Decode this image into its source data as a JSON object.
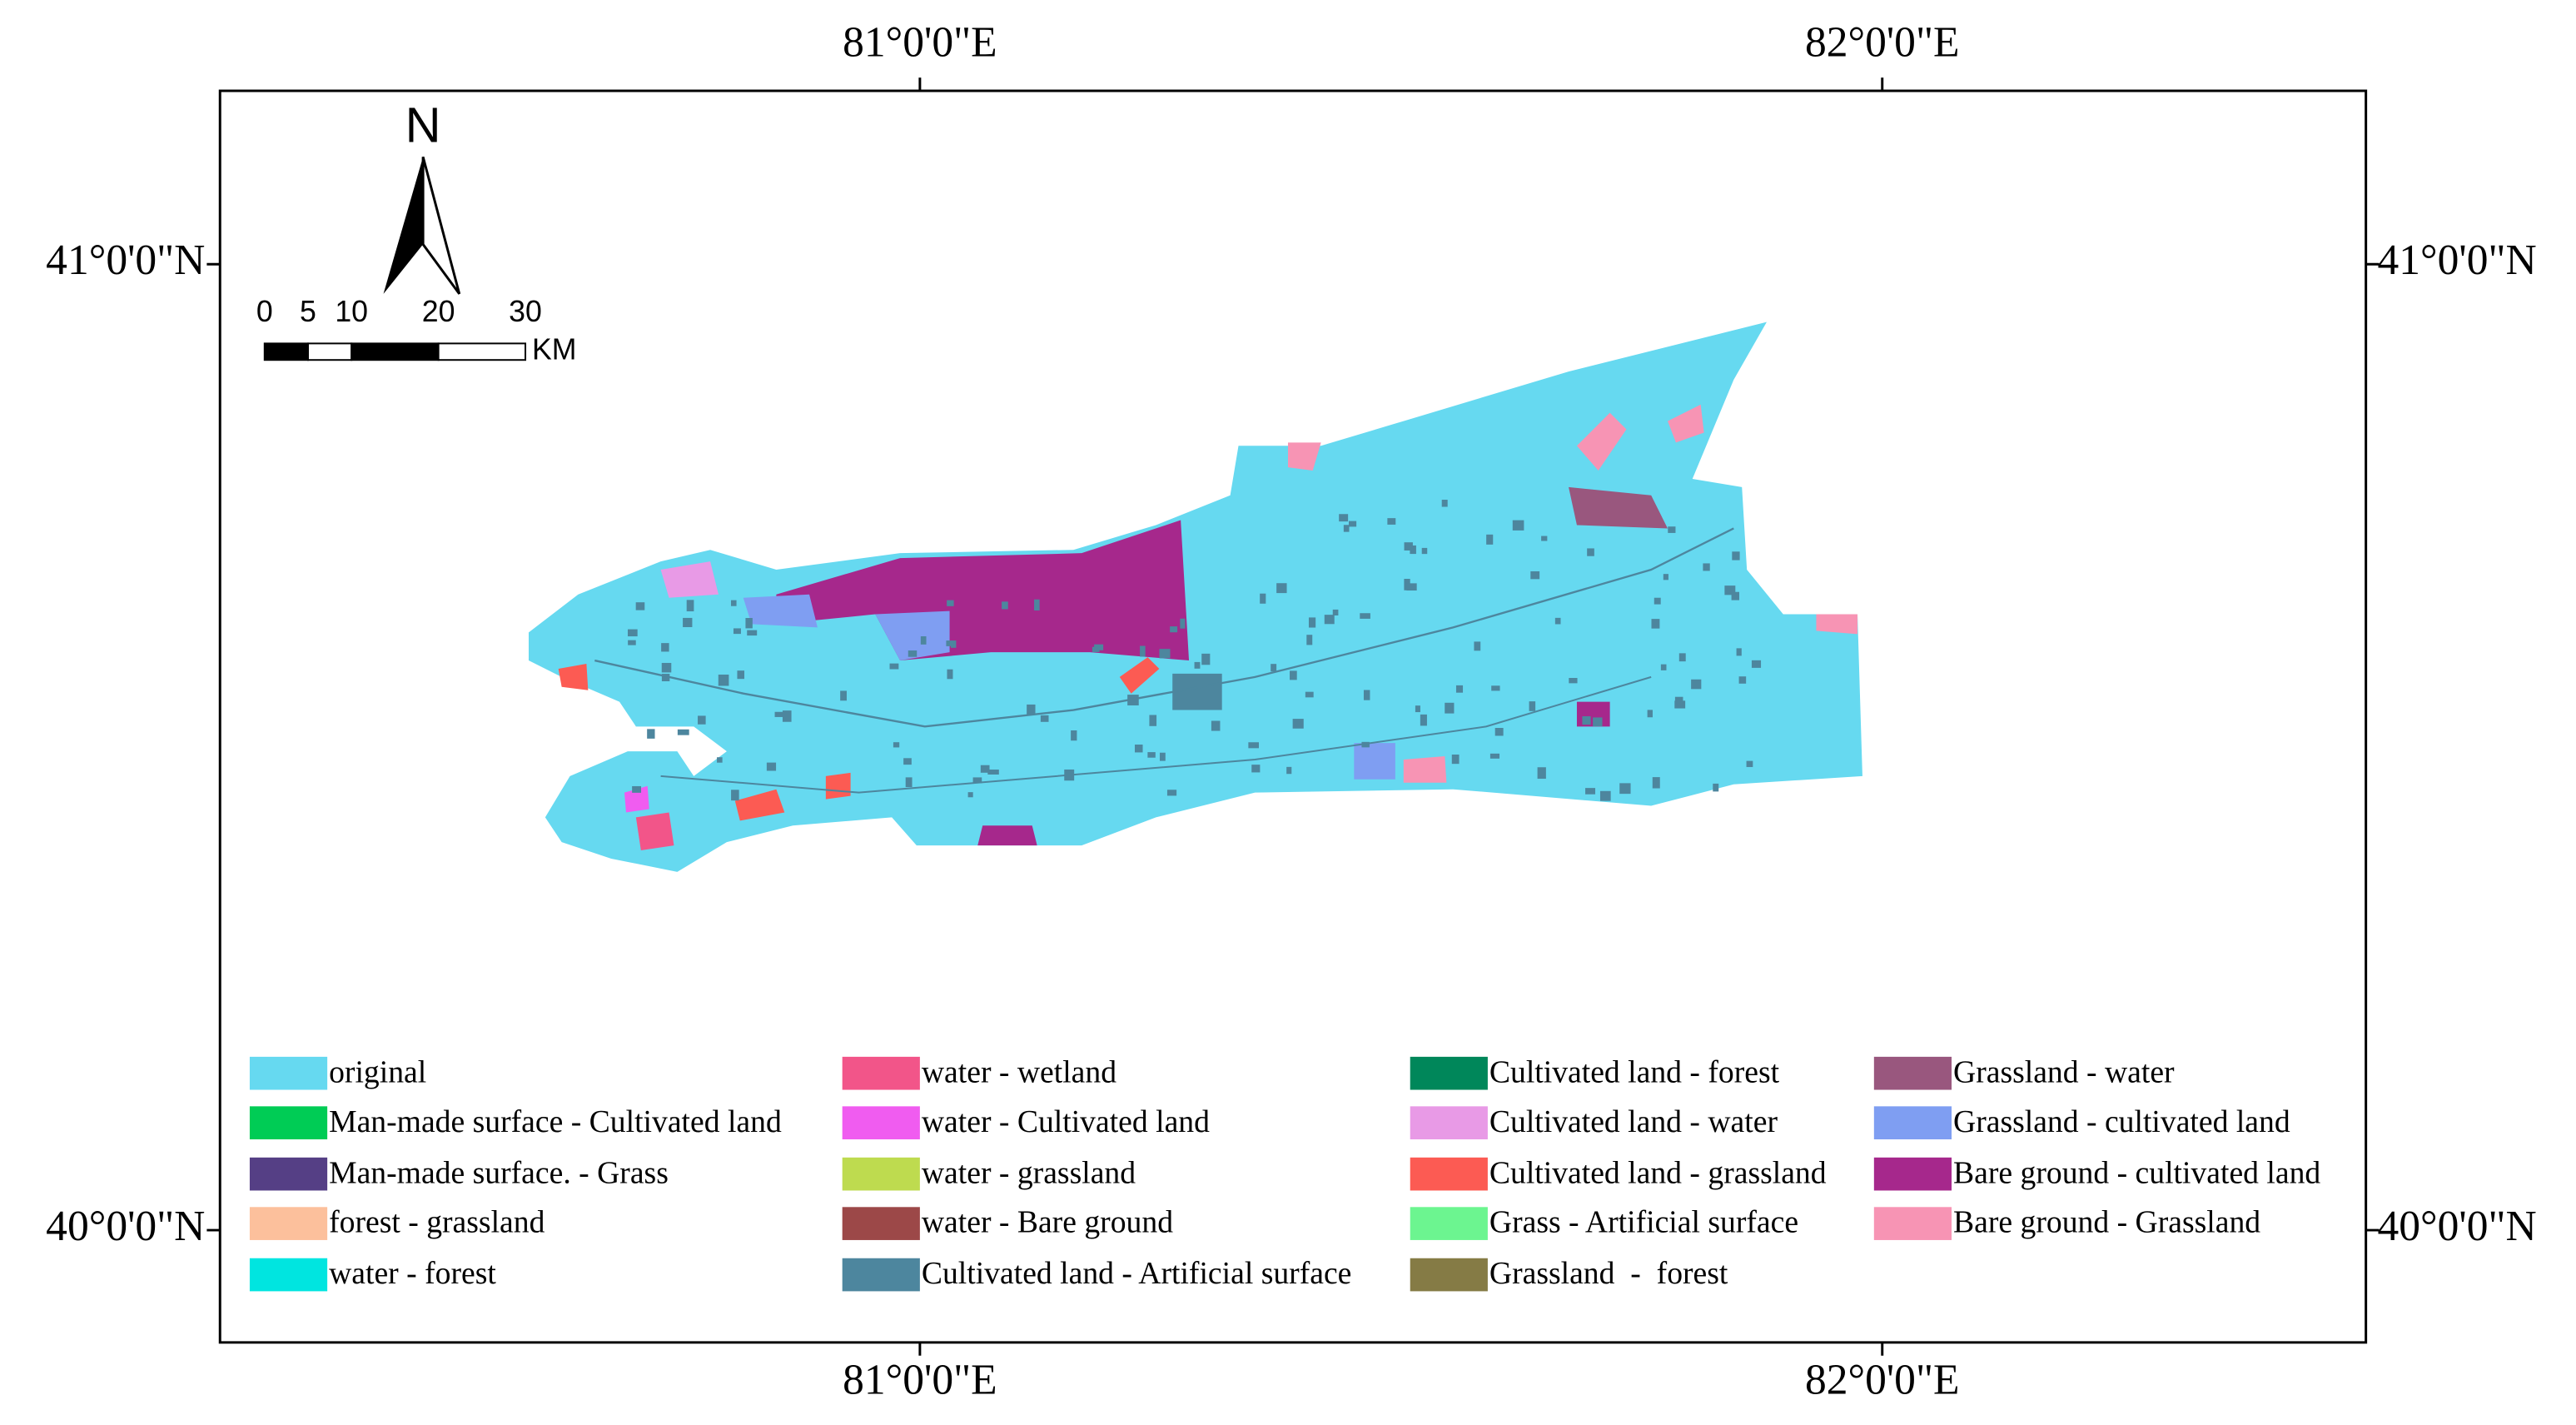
{
  "map": {
    "top_labels": [
      "81°0'0\"E",
      "82°0'0\"E"
    ],
    "bottom_labels": [
      "81°0'0\"E",
      "82°0'0\"E"
    ],
    "left_labels": [
      "41°0'0\"N",
      "40°0'0\"N"
    ],
    "right_labels": [
      "41°0'0\"N",
      "40°0'0\"N"
    ],
    "north_label": "N",
    "scale_ticks": [
      0,
      5,
      10,
      20,
      30
    ],
    "scale_unit": "KM",
    "legend": [
      {
        "name": "original",
        "color": "#66d9f0"
      },
      {
        "name": "Man-made surface - Cultivated land",
        "color": "#00cc55"
      },
      {
        "name": "Man-made surface. - Grass",
        "color": "#553f85"
      },
      {
        "name": "forest - grassland",
        "color": "#fcc09c"
      },
      {
        "name": "water - forest",
        "color": "#00e5e0"
      },
      {
        "name": "water - wetland",
        "color": "#f25589"
      },
      {
        "name": "water - Cultivated land",
        "color": "#f05cf0"
      },
      {
        "name": "water - grassland",
        "color": "#bedb4f"
      },
      {
        "name": "water - Bare ground",
        "color": "#9c4848"
      },
      {
        "name": "Cultivated land - Artificial surface",
        "color": "#4d869e"
      },
      {
        "name": "Cultivated land - forest",
        "color": "#00875a"
      },
      {
        "name": "Cultivated land - water",
        "color": "#e89ae6"
      },
      {
        "name": "Cultivated land - grassland",
        "color": "#fc5b53"
      },
      {
        "name": "Grass - Artificial surface",
        "color": "#6cf590"
      },
      {
        "name": "Grassland  -  forest",
        "color": "#857b45"
      },
      {
        "name": "Grassland - water",
        "color": "#99577e"
      },
      {
        "name": "Grassland - cultivated land",
        "color": "#7f9ef2"
      },
      {
        "name": "Bare ground - cultivated land",
        "color": "#a6288c"
      },
      {
        "name": "Bare ground - Grassland",
        "color": "#f794b4"
      }
    ]
  }
}
